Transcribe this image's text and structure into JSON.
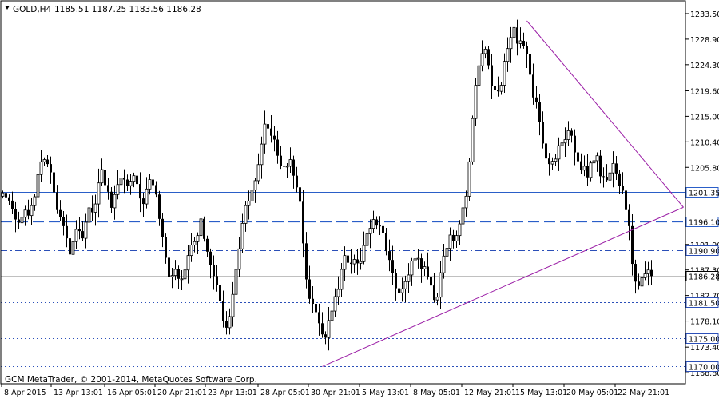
{
  "window": {
    "symbol_timeframe": "GOLD,H4",
    "ohlc_readout": "1185.51 1187.25 1183.56 1186.28",
    "watermark": "GCM MetaTrader, © 2001-2014, MetaQuotes Software Corp."
  },
  "colors": {
    "background": "#ffffff",
    "frame": "#000000",
    "candle": "#000000",
    "blue_level": "#2a5ec8",
    "dotted_level": "#2b4fb8",
    "trendline": "#9b1ea6",
    "last_price_line": "#c0c0c0"
  },
  "chart_data": {
    "type": "candlestick",
    "title": "GOLD,H4",
    "y_axis": {
      "min": 1166.8,
      "max": 1235.8,
      "ticks": [
        "1233.50",
        "1228.90",
        "1224.30",
        "1219.60",
        "1215.00",
        "1210.40",
        "1205.80",
        "1201.20",
        "1196.50",
        "1191.90",
        "1187.30",
        "1182.70",
        "1178.10",
        "1173.40",
        "1168.80"
      ]
    },
    "x_axis": {
      "ticks": [
        "8 Apr 2015",
        "13 Apr 13:01",
        "16 Apr 05:01",
        "20 Apr 21:01",
        "23 Apr 13:01",
        "28 Apr 05:01",
        "30 Apr 21:01",
        "5 May 13:01",
        "8 May 05:01",
        "12 May 21:01",
        "15 May 13:01",
        "20 May 05:01",
        "22 May 21:01"
      ]
    },
    "horizontal_levels": [
      {
        "value": 1201.35,
        "label": "1201.35",
        "style": "solid"
      },
      {
        "value": 1196.1,
        "label": "1196.10",
        "style": "dashed"
      },
      {
        "value": 1190.9,
        "label": "1190.90",
        "style": "dashdot"
      },
      {
        "value": 1181.5,
        "label": "1181.50",
        "style": "dotted"
      },
      {
        "value": 1175.0,
        "label": "1175.00",
        "style": "dotted"
      },
      {
        "value": 1170.0,
        "label": "1170.00",
        "style": "dotted"
      }
    ],
    "current_price": {
      "value": 1186.28,
      "label": "1186.28"
    },
    "trendlines": [
      {
        "name": "upper",
        "from": {
          "bar": 164,
          "price": 1232.2
        },
        "to": {
          "bar": 213,
          "price": 1198.6
        }
      },
      {
        "name": "lower",
        "from": {
          "bar": 100,
          "price": 1169.9
        },
        "to": {
          "bar": 213,
          "price": 1198.6
        }
      }
    ],
    "closes": [
      1201.2,
      1200.4,
      1199.8,
      1198.3,
      1196.4,
      1195.8,
      1196.8,
      1198.1,
      1197.1,
      1198.9,
      1200.5,
      1204.5,
      1206.8,
      1207.2,
      1206.4,
      1204.9,
      1201.3,
      1198.1,
      1196.8,
      1195.2,
      1193.0,
      1190.1,
      1192.4,
      1194.6,
      1194.3,
      1193.0,
      1195.9,
      1198.5,
      1197.7,
      1199.2,
      1203.0,
      1205.4,
      1202.6,
      1201.4,
      1198.5,
      1200.9,
      1202.7,
      1203.9,
      1203.6,
      1202.5,
      1203.3,
      1204.3,
      1202.8,
      1200.2,
      1199.2,
      1201.9,
      1203.6,
      1202.6,
      1200.9,
      1196.5,
      1193.2,
      1189.5,
      1186.1,
      1186.3,
      1187.4,
      1185.7,
      1185.7,
      1187.3,
      1189.9,
      1191.8,
      1192.4,
      1193.5,
      1196.5,
      1192.9,
      1190.6,
      1188.2,
      1186.2,
      1184.6,
      1181.7,
      1178.1,
      1176.9,
      1178.9,
      1182.9,
      1187.4,
      1191.1,
      1195.7,
      1198.9,
      1199.7,
      1201.7,
      1203.4,
      1206.3,
      1210.0,
      1213.6,
      1212.8,
      1211.5,
      1210.8,
      1207.9,
      1206.1,
      1205.9,
      1206.0,
      1207.2,
      1204.3,
      1202.2,
      1199.6,
      1192.1,
      1185.6,
      1182.1,
      1181.2,
      1179.7,
      1177.7,
      1175.7,
      1175.1,
      1178.2,
      1179.9,
      1182.5,
      1183.8,
      1187.4,
      1189.9,
      1188.6,
      1188.4,
      1189.2,
      1188.5,
      1188.8,
      1191.7,
      1193.8,
      1194.8,
      1196.4,
      1195.3,
      1195.2,
      1193.9,
      1190.7,
      1189.1,
      1186.8,
      1184.0,
      1183.2,
      1183.9,
      1185.2,
      1186.4,
      1188.9,
      1189.3,
      1189.4,
      1187.5,
      1187.9,
      1186.1,
      1184.5,
      1181.9,
      1182.4,
      1186.8,
      1189.8,
      1191.2,
      1193.6,
      1192.5,
      1193.5,
      1195.6,
      1198.5,
      1200.6,
      1206.8,
      1214.6,
      1220.6,
      1224.1,
      1226.3,
      1227.1,
      1224.2,
      1220.5,
      1219.8,
      1219.5,
      1220.6,
      1224.9,
      1227.2,
      1229.2,
      1231.0,
      1228.1,
      1228.6,
      1227.7,
      1226.2,
      1222.5,
      1218.4,
      1217.5,
      1214.0,
      1210.1,
      1207.4,
      1206.4,
      1206.9,
      1207.3,
      1209.7,
      1210.2,
      1210.8,
      1212.4,
      1211.5,
      1208.5,
      1206.9,
      1205.3,
      1206.0,
      1204.0,
      1206.6,
      1207.0,
      1207.9,
      1204.2,
      1204.1,
      1203.5,
      1204.8,
      1206.5,
      1204.7,
      1202.4,
      1201.6,
      1198.1,
      1195.2,
      1188.4,
      1185.2,
      1184.4,
      1185.9,
      1186.6,
      1187.3,
      1186.2
    ]
  }
}
